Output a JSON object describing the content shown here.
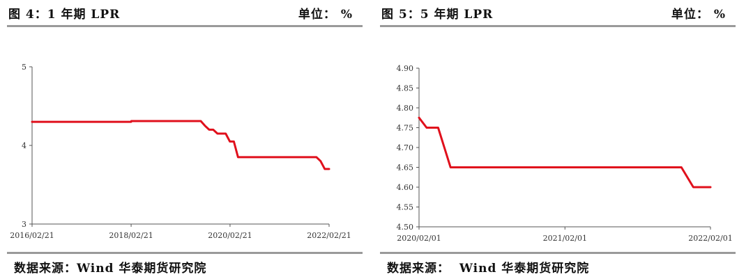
{
  "left_panel": {
    "title": "图 4：1 年期 LPR",
    "unit": "单位： %",
    "source": "数据来源：Wind 华泰期货研究院"
  },
  "right_panel": {
    "title": "图 5：5 年期 LPR",
    "unit": "单位： %",
    "source": "数据来源：  Wind 华泰期货研究院"
  },
  "colors": {
    "line": "#e0101c",
    "axis": "#555555",
    "rule": "#9a9a9a"
  },
  "chart_data": [
    {
      "type": "line",
      "title": "图 4：1 年期 LPR",
      "ylabel": "单位： %",
      "x_axis": "date",
      "xlim": [
        "2016-02-21",
        "2022-02-21"
      ],
      "ylim": [
        3,
        5
      ],
      "yticks": [
        3,
        4,
        5
      ],
      "ytick_labels": [
        "3",
        "4",
        "5"
      ],
      "xticks": [
        "2016-02-21",
        "2018-02-21",
        "2020-02-21",
        "2022-02-21"
      ],
      "xtick_labels": [
        "2016/02/21",
        "2018/02/21",
        "2020/02/21",
        "2022/02/21"
      ],
      "grid": false,
      "series": [
        {
          "points": [
            [
              "2016-02-21",
              4.3
            ],
            [
              "2018-02-21",
              4.3
            ],
            [
              "2018-02-22",
              4.31
            ],
            [
              "2019-06-20",
              4.31
            ],
            [
              "2019-07-20",
              4.31
            ],
            [
              "2019-08-20",
              4.25
            ],
            [
              "2019-09-20",
              4.2
            ],
            [
              "2019-10-20",
              4.2
            ],
            [
              "2019-11-20",
              4.15
            ],
            [
              "2019-12-20",
              4.15
            ],
            [
              "2020-01-20",
              4.15
            ],
            [
              "2020-02-20",
              4.05
            ],
            [
              "2020-03-20",
              4.05
            ],
            [
              "2020-04-20",
              3.85
            ],
            [
              "2021-11-20",
              3.85
            ],
            [
              "2021-12-20",
              3.8
            ],
            [
              "2022-01-20",
              3.7
            ],
            [
              "2022-02-21",
              3.7
            ]
          ]
        }
      ]
    },
    {
      "type": "line",
      "title": "图 5：5 年期 LPR",
      "ylabel": "单位： %",
      "x_axis": "date",
      "xlim": [
        "2020-02-01",
        "2022-02-01"
      ],
      "ylim": [
        4.5,
        4.9
      ],
      "yticks": [
        4.5,
        4.55,
        4.6,
        4.65,
        4.7,
        4.75,
        4.8,
        4.85,
        4.9
      ],
      "ytick_labels": [
        "4.50",
        "4.55",
        "4.60",
        "4.65",
        "4.70",
        "4.75",
        "4.80",
        "4.85",
        "4.90"
      ],
      "xticks": [
        "2020-02-01",
        "2021-02-01",
        "2022-02-01"
      ],
      "xtick_labels": [
        "2020/02/01",
        "2021/02/01",
        "2022/02/01"
      ],
      "grid": false,
      "series": [
        {
          "points": [
            [
              "2020-02-01",
              4.775
            ],
            [
              "2020-02-20",
              4.75
            ],
            [
              "2020-03-20",
              4.75
            ],
            [
              "2020-04-20",
              4.65
            ],
            [
              "2021-11-20",
              4.65
            ],
            [
              "2021-12-20",
              4.6
            ],
            [
              "2022-01-20",
              4.6
            ],
            [
              "2022-02-01",
              4.6
            ]
          ]
        }
      ]
    }
  ]
}
